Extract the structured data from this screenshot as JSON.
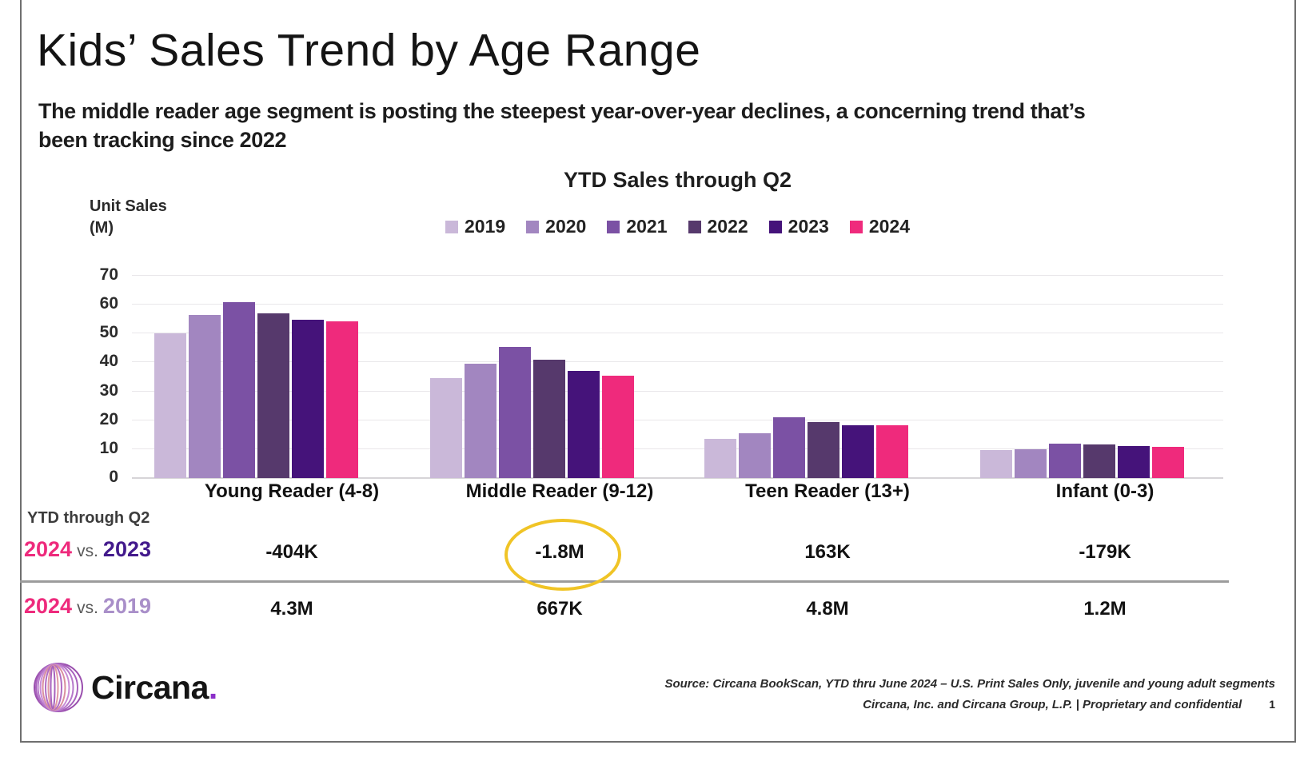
{
  "slide": {
    "title": "Kids’ Sales Trend by Age Range",
    "subtitle_line1": "The middle reader age segment is posting the steepest year-over-year declines, a concerning trend that’s",
    "subtitle_line2": "been tracking since 2022"
  },
  "chart_data": {
    "type": "bar",
    "title": "YTD Sales through Q2",
    "ylabel": "Unit Sales (M)",
    "ylim": [
      0,
      70
    ],
    "ytick_interval": 10,
    "yticks": [
      0,
      10,
      20,
      30,
      40,
      50,
      60,
      70
    ],
    "grid": true,
    "legend_position": "top",
    "categories": [
      "Young Reader (4-8)",
      "Middle Reader (9-12)",
      "Teen Reader (13+)",
      "Infant (0-3)"
    ],
    "series": [
      {
        "name": "2019",
        "color": "#cab8d9",
        "values": [
          50.0,
          34.6,
          13.6,
          9.7
        ]
      },
      {
        "name": "2020",
        "color": "#a286c0",
        "values": [
          56.5,
          39.5,
          15.6,
          10.0
        ]
      },
      {
        "name": "2021",
        "color": "#7b51a4",
        "values": [
          61.0,
          45.5,
          21.0,
          12.0
        ]
      },
      {
        "name": "2022",
        "color": "#56396c",
        "values": [
          57.0,
          41.0,
          19.5,
          11.5
        ]
      },
      {
        "name": "2023",
        "color": "#45137a",
        "values": [
          54.7,
          37.1,
          18.2,
          11.1
        ]
      },
      {
        "name": "2024",
        "color": "#ef2a7c",
        "values": [
          54.3,
          35.3,
          18.4,
          10.9
        ]
      }
    ]
  },
  "comparison_table": {
    "row_header": "YTD through Q2",
    "rows": [
      {
        "year_left": "2024",
        "vs": "vs.",
        "year_right": "2023",
        "left_color": "#ee2a7c",
        "right_color": "#431a8c",
        "values": [
          "-404K",
          "-1.8M",
          "163K",
          "-179K"
        ],
        "highlight_index": 1
      },
      {
        "year_left": "2024",
        "vs": "vs.",
        "year_right": "2019",
        "left_color": "#ee2a7c",
        "right_color": "#a98fc9",
        "values": [
          "4.3M",
          "667K",
          "4.8M",
          "1.2M"
        ],
        "highlight_index": -1
      }
    ]
  },
  "footer": {
    "logo_text": "Circana",
    "logo_dot": ".",
    "source_line1": "Source: Circana BookScan, YTD thru June 2024 – U.S. Print Sales Only, juvenile and young adult segments",
    "source_line2": "Circana, Inc. and Circana Group, L.P. |  Proprietary and confidential",
    "page_number": "1"
  },
  "colors": {
    "accent_pink": "#ee2a7c",
    "highlight_yellow": "#f0c426",
    "gridline": "#e9e7ea",
    "divider": "#9c9c9c"
  }
}
